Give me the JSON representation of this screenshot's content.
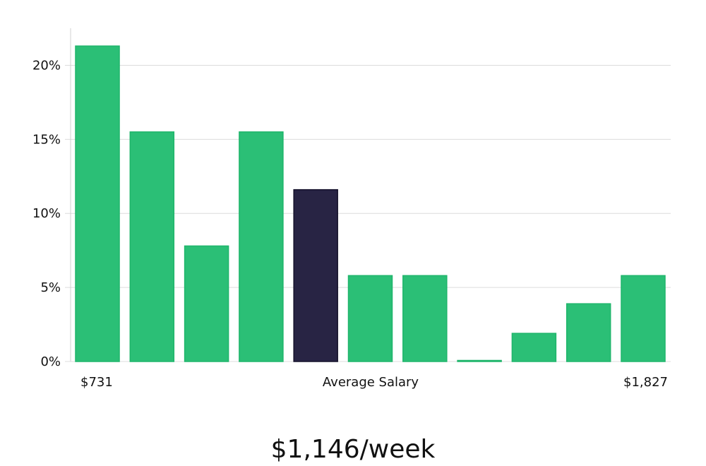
{
  "chart_data": {
    "type": "bar",
    "bins": 11,
    "values": [
      21.3,
      15.5,
      7.8,
      15.5,
      11.6,
      5.8,
      5.8,
      0.0,
      1.9,
      3.9,
      5.8
    ],
    "highlight_index": 4,
    "yticks": [
      "0%",
      "5%",
      "10%",
      "15%",
      "20%"
    ],
    "ytick_values": [
      0,
      5,
      10,
      15,
      20
    ],
    "ylim": [
      0,
      22.5
    ],
    "grid": true,
    "x_min_label": "$731",
    "x_center_label": "Average Salary",
    "x_max_label": "$1,827",
    "summary": "$1,146/week",
    "colors": {
      "bar": "#2bbf76",
      "bar_stroke": "#1fb56b",
      "highlight": "#282444",
      "highlight_stroke": "#15122b"
    }
  }
}
